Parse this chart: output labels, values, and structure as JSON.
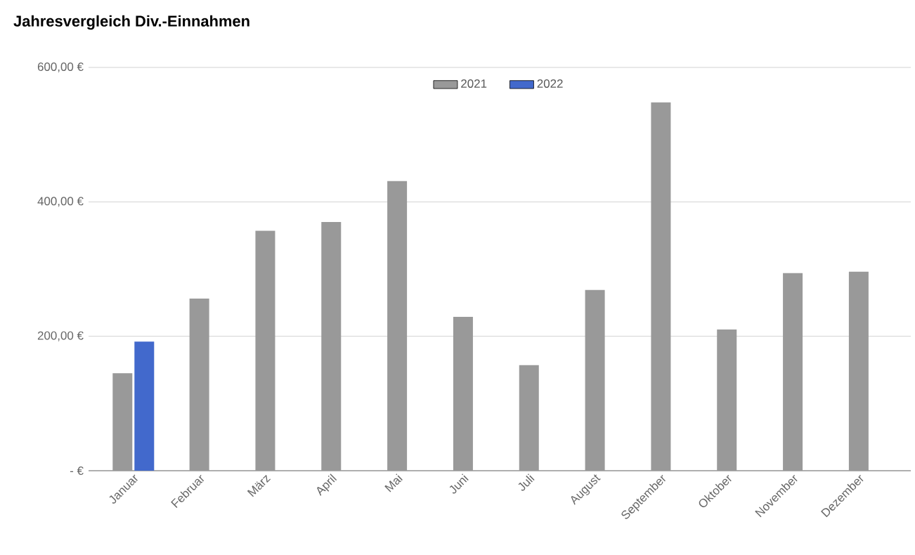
{
  "chart_data": {
    "type": "bar",
    "title": "Jahresvergleich Div.-Einnahmen",
    "categories": [
      "Januar",
      "Februar",
      "März",
      "April",
      "Mai",
      "Juni",
      "Juli",
      "August",
      "September",
      "Oktober",
      "November",
      "Dezember"
    ],
    "series": [
      {
        "name": "2021",
        "color": "#999999",
        "values": [
          145,
          256,
          357,
          370,
          431,
          229,
          157,
          269,
          548,
          210,
          294,
          296
        ]
      },
      {
        "name": "2022",
        "color": "#4269cc",
        "values": [
          192,
          null,
          null,
          null,
          null,
          null,
          null,
          null,
          null,
          null,
          null,
          null
        ]
      }
    ],
    "ylim": [
      0,
      600
    ],
    "yticks": [
      {
        "value": 0,
        "label": "-  €"
      },
      {
        "value": 200,
        "label": "200,00 €"
      },
      {
        "value": 400,
        "label": "400,00 €"
      },
      {
        "value": 600,
        "label": "600,00 €"
      }
    ],
    "grid": "y",
    "legend": "top"
  }
}
